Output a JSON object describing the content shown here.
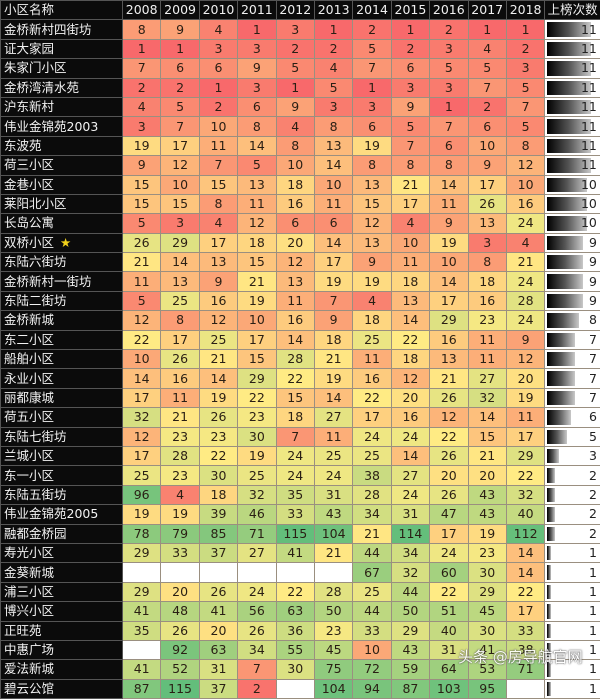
{
  "table": {
    "headers": [
      "小区名称",
      "2008",
      "2009",
      "2010",
      "2011",
      "2012",
      "2013",
      "2014",
      "2015",
      "2016",
      "2017",
      "2018",
      "上榜次数"
    ],
    "max_count": 11,
    "rows": [
      {
        "name": "金桥新村四街坊",
        "values": [
          8,
          9,
          4,
          1,
          3,
          1,
          2,
          1,
          2,
          1,
          1
        ],
        "count": 11
      },
      {
        "name": "证大家园",
        "values": [
          1,
          1,
          3,
          3,
          2,
          2,
          5,
          2,
          3,
          4,
          2
        ],
        "count": 11
      },
      {
        "name": "朱家门小区",
        "values": [
          7,
          6,
          6,
          9,
          5,
          4,
          7,
          6,
          5,
          5,
          3
        ],
        "count": 11
      },
      {
        "name": "金桥湾清水苑",
        "values": [
          2,
          2,
          1,
          3,
          1,
          5,
          1,
          3,
          3,
          7,
          5
        ],
        "count": 11
      },
      {
        "name": "沪东新村",
        "values": [
          4,
          5,
          2,
          6,
          9,
          3,
          3,
          9,
          1,
          2,
          7
        ],
        "count": 11
      },
      {
        "name": "伟业金锦苑2003",
        "values": [
          3,
          7,
          10,
          8,
          4,
          8,
          6,
          5,
          7,
          6,
          5
        ],
        "count": 11
      },
      {
        "name": "东波苑",
        "values": [
          19,
          17,
          11,
          14,
          8,
          13,
          19,
          7,
          6,
          10,
          8
        ],
        "count": 11
      },
      {
        "name": "荷三小区",
        "values": [
          9,
          12,
          7,
          5,
          10,
          14,
          8,
          8,
          8,
          9,
          12
        ],
        "count": 11
      },
      {
        "name": "金巷小区",
        "values": [
          15,
          10,
          15,
          13,
          18,
          10,
          13,
          21,
          14,
          17,
          10
        ],
        "count": 10
      },
      {
        "name": "莱阳北小区",
        "values": [
          15,
          15,
          8,
          11,
          16,
          11,
          15,
          17,
          11,
          26,
          16
        ],
        "count": 10
      },
      {
        "name": "长岛公寓",
        "values": [
          5,
          3,
          4,
          12,
          6,
          6,
          12,
          4,
          9,
          13,
          24
        ],
        "count": 10
      },
      {
        "name": "双桥小区",
        "star": "★",
        "values": [
          26,
          29,
          17,
          18,
          20,
          14,
          13,
          10,
          19,
          3,
          4
        ],
        "count": 9
      },
      {
        "name": "东陆六街坊",
        "values": [
          21,
          14,
          13,
          15,
          12,
          17,
          9,
          11,
          10,
          8,
          21
        ],
        "count": 9
      },
      {
        "name": "金桥新村一街坊",
        "values": [
          11,
          13,
          9,
          21,
          13,
          19,
          19,
          18,
          14,
          18,
          24
        ],
        "count": 9
      },
      {
        "name": "东陆二街坊",
        "values": [
          5,
          25,
          16,
          19,
          11,
          7,
          4,
          13,
          17,
          16,
          28
        ],
        "count": 9
      },
      {
        "name": "金桥新城",
        "values": [
          12,
          8,
          12,
          10,
          16,
          9,
          18,
          14,
          29,
          23,
          24
        ],
        "count": 8
      },
      {
        "name": "东二小区",
        "values": [
          22,
          17,
          25,
          17,
          14,
          18,
          25,
          22,
          16,
          11,
          9
        ],
        "count": 7
      },
      {
        "name": "船舶小区",
        "values": [
          10,
          26,
          21,
          15,
          28,
          21,
          11,
          18,
          13,
          11,
          12
        ],
        "count": 7
      },
      {
        "name": "永业小区",
        "values": [
          14,
          16,
          14,
          29,
          22,
          19,
          16,
          12,
          21,
          27,
          20
        ],
        "count": 7
      },
      {
        "name": "丽都康城",
        "values": [
          17,
          11,
          19,
          22,
          15,
          14,
          22,
          20,
          26,
          32,
          19
        ],
        "count": 7
      },
      {
        "name": "荷五小区",
        "values": [
          32,
          21,
          26,
          23,
          18,
          27,
          17,
          16,
          12,
          14,
          11
        ],
        "count": 6
      },
      {
        "name": "东陆七街坊",
        "values": [
          12,
          23,
          23,
          30,
          7,
          11,
          24,
          24,
          22,
          15,
          17
        ],
        "count": 5
      },
      {
        "name": "兰城小区",
        "values": [
          17,
          28,
          22,
          19,
          24,
          25,
          25,
          14,
          26,
          21,
          29
        ],
        "count": 3
      },
      {
        "name": "东一小区",
        "values": [
          25,
          23,
          30,
          25,
          24,
          24,
          38,
          27,
          20,
          20,
          22
        ],
        "count": 2
      },
      {
        "name": "东陆五街坊",
        "values": [
          96,
          4,
          18,
          32,
          35,
          31,
          28,
          24,
          26,
          43,
          32
        ],
        "count": 2
      },
      {
        "name": "伟业金锦苑2005",
        "values": [
          19,
          19,
          39,
          46,
          33,
          43,
          34,
          31,
          47,
          43,
          40
        ],
        "count": 2
      },
      {
        "name": "融都金桥园",
        "values": [
          78,
          79,
          85,
          71,
          115,
          104,
          21,
          114,
          17,
          19,
          112
        ],
        "count": 2
      },
      {
        "name": "寿光小区",
        "values": [
          29,
          33,
          37,
          27,
          41,
          21,
          44,
          34,
          24,
          23,
          14
        ],
        "count": 1
      },
      {
        "name": "金葵新城",
        "values": [
          null,
          null,
          null,
          null,
          null,
          null,
          67,
          32,
          60,
          30,
          14
        ],
        "count": 1
      },
      {
        "name": "浦三小区",
        "values": [
          29,
          20,
          26,
          24,
          22,
          28,
          25,
          44,
          22,
          29,
          22
        ],
        "count": 1
      },
      {
        "name": "博兴小区",
        "values": [
          41,
          48,
          41,
          56,
          63,
          50,
          44,
          50,
          51,
          45,
          17
        ],
        "count": 1
      },
      {
        "name": "正旺苑",
        "values": [
          35,
          26,
          20,
          26,
          36,
          23,
          33,
          29,
          40,
          30,
          33
        ],
        "count": 1
      },
      {
        "name": "中惠广场",
        "values": [
          null,
          92,
          63,
          34,
          55,
          45,
          10,
          43,
          31,
          41,
          38
        ],
        "count": 1
      },
      {
        "name": "爱法新城",
        "values": [
          41,
          52,
          31,
          7,
          30,
          75,
          72,
          59,
          64,
          53,
          71
        ],
        "count": 1
      },
      {
        "name": "碧云公馆",
        "values": [
          87,
          115,
          37,
          2,
          null,
          104,
          94,
          87,
          103,
          95,
          null
        ],
        "count": 1
      }
    ]
  },
  "watermark": "头条 @房导航官网",
  "colors": {
    "header_bg": "#0b0b0b",
    "rank_low": "#f8696b",
    "rank_mid": "#ffeb84",
    "rank_high": "#63be7b",
    "empty": "#ffffff"
  },
  "chart_data": {
    "type": "heatmap",
    "title": "",
    "xlabel": "年份",
    "ylabel": "小区名称",
    "x": [
      "2008",
      "2009",
      "2010",
      "2011",
      "2012",
      "2013",
      "2014",
      "2015",
      "2016",
      "2017",
      "2018"
    ],
    "y": [
      "金桥新村四街坊",
      "证大家园",
      "朱家门小区",
      "金桥湾清水苑",
      "沪东新村",
      "伟业金锦苑2003",
      "东波苑",
      "荷三小区",
      "金巷小区",
      "莱阳北小区",
      "长岛公寓",
      "双桥小区",
      "东陆六街坊",
      "金桥新村一街坊",
      "东陆二街坊",
      "金桥新城",
      "东二小区",
      "船舶小区",
      "永业小区",
      "丽都康城",
      "荷五小区",
      "东陆七街坊",
      "兰城小区",
      "东一小区",
      "东陆五街坊",
      "伟业金锦苑2005",
      "融都金桥园",
      "寿光小区",
      "金葵新城",
      "浦三小区",
      "博兴小区",
      "正旺苑",
      "中惠广场",
      "爱法新城",
      "碧云公馆"
    ],
    "values": [
      [
        8,
        9,
        4,
        1,
        3,
        1,
        2,
        1,
        2,
        1,
        1
      ],
      [
        1,
        1,
        3,
        3,
        2,
        2,
        5,
        2,
        3,
        4,
        2
      ],
      [
        7,
        6,
        6,
        9,
        5,
        4,
        7,
        6,
        5,
        5,
        3
      ],
      [
        2,
        2,
        1,
        3,
        1,
        5,
        1,
        3,
        3,
        7,
        5
      ],
      [
        4,
        5,
        2,
        6,
        9,
        3,
        3,
        9,
        1,
        2,
        7
      ],
      [
        3,
        7,
        10,
        8,
        4,
        8,
        6,
        5,
        7,
        6,
        5
      ],
      [
        19,
        17,
        11,
        14,
        8,
        13,
        19,
        7,
        6,
        10,
        8
      ],
      [
        9,
        12,
        7,
        5,
        10,
        14,
        8,
        8,
        8,
        9,
        12
      ],
      [
        15,
        10,
        15,
        13,
        18,
        10,
        13,
        21,
        14,
        17,
        10
      ],
      [
        15,
        15,
        8,
        11,
        16,
        11,
        15,
        17,
        11,
        26,
        16
      ],
      [
        5,
        3,
        4,
        12,
        6,
        6,
        12,
        4,
        9,
        13,
        24
      ],
      [
        26,
        29,
        17,
        18,
        20,
        14,
        13,
        10,
        19,
        3,
        4
      ],
      [
        21,
        14,
        13,
        15,
        12,
        17,
        9,
        11,
        10,
        8,
        21
      ],
      [
        11,
        13,
        9,
        21,
        13,
        19,
        19,
        18,
        14,
        18,
        24
      ],
      [
        5,
        25,
        16,
        19,
        11,
        7,
        4,
        13,
        17,
        16,
        28
      ],
      [
        12,
        8,
        12,
        10,
        16,
        9,
        18,
        14,
        29,
        23,
        24
      ],
      [
        22,
        17,
        25,
        17,
        14,
        18,
        25,
        22,
        16,
        11,
        9
      ],
      [
        10,
        26,
        21,
        15,
        28,
        21,
        11,
        18,
        13,
        11,
        12
      ],
      [
        14,
        16,
        14,
        29,
        22,
        19,
        16,
        12,
        21,
        27,
        20
      ],
      [
        17,
        11,
        19,
        22,
        15,
        14,
        22,
        20,
        26,
        32,
        19
      ],
      [
        32,
        21,
        26,
        23,
        18,
        27,
        17,
        16,
        12,
        14,
        11
      ],
      [
        12,
        23,
        23,
        30,
        7,
        11,
        24,
        24,
        22,
        15,
        17
      ],
      [
        17,
        28,
        22,
        19,
        24,
        25,
        25,
        14,
        26,
        21,
        29
      ],
      [
        25,
        23,
        30,
        25,
        24,
        24,
        38,
        27,
        20,
        20,
        22
      ],
      [
        96,
        4,
        18,
        32,
        35,
        31,
        28,
        24,
        26,
        43,
        32
      ],
      [
        19,
        19,
        39,
        46,
        33,
        43,
        34,
        31,
        47,
        43,
        40
      ],
      [
        78,
        79,
        85,
        71,
        115,
        104,
        21,
        114,
        17,
        19,
        112
      ],
      [
        29,
        33,
        37,
        27,
        41,
        21,
        44,
        34,
        24,
        23,
        14
      ],
      [
        null,
        null,
        null,
        null,
        null,
        null,
        67,
        32,
        60,
        30,
        14
      ],
      [
        29,
        20,
        26,
        24,
        22,
        28,
        25,
        44,
        22,
        29,
        22
      ],
      [
        41,
        48,
        41,
        56,
        63,
        50,
        44,
        50,
        51,
        45,
        17
      ],
      [
        35,
        26,
        20,
        26,
        36,
        23,
        33,
        29,
        40,
        30,
        33
      ],
      [
        null,
        92,
        63,
        34,
        55,
        45,
        10,
        43,
        31,
        41,
        38
      ],
      [
        41,
        52,
        31,
        7,
        30,
        75,
        72,
        59,
        64,
        53,
        71
      ],
      [
        87,
        115,
        37,
        2,
        null,
        104,
        94,
        87,
        103,
        95,
        null
      ]
    ],
    "extra_column": {
      "name": "上榜次数",
      "type": "databar",
      "values": [
        11,
        11,
        11,
        11,
        11,
        11,
        11,
        11,
        10,
        10,
        10,
        9,
        9,
        9,
        9,
        8,
        7,
        7,
        7,
        7,
        6,
        5,
        3,
        2,
        2,
        2,
        2,
        1,
        1,
        1,
        1,
        1,
        1,
        1,
        1
      ],
      "range": [
        0,
        11
      ]
    },
    "color_scale": {
      "low": "#f8696b",
      "mid": "#ffeb84",
      "high": "#63be7b",
      "note": "rank 1 = red, mid ranks = yellow, large ranks = green; blank = not ranked"
    },
    "legend": "none"
  }
}
